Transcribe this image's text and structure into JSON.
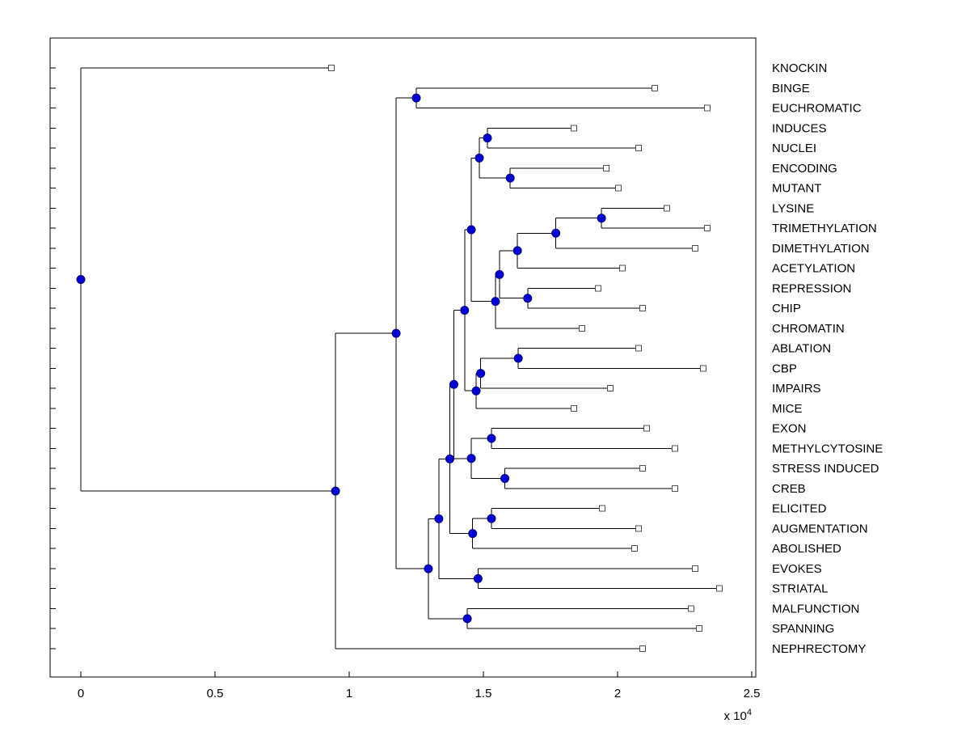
{
  "figure": {
    "background": "#ffffff",
    "axis_color": "#000000",
    "line_color": "#000000",
    "node_color": "#0000d0",
    "node_edge_color": "#000080",
    "leaf_marker_fill": "#ffffff",
    "leaf_marker_edge": "#505050",
    "text_color": "#000000"
  },
  "chart_data": {
    "type": "dendrogram",
    "subtype": "phylogenetic-tree",
    "orientation": "left-to-right",
    "title": "",
    "xlabel": "",
    "ylabel": "",
    "x_multiplier_label": "x 10^4",
    "xlim": [
      0,
      25000
    ],
    "xticks": [
      0,
      5000,
      10000,
      15000,
      20000,
      25000
    ],
    "xtick_labels": [
      "0",
      "0.5",
      "1",
      "1.5",
      "2",
      "2.5"
    ],
    "grid": false,
    "legend": null,
    "leaf_labels": [
      "KNOCKIN",
      "BINGE",
      "EUCHROMATIC",
      "INDUCES",
      "NUCLEI",
      "ENCODING",
      "MUTANT",
      "LYSINE",
      "TRIMETHYLATION",
      "DIMETHYLATION",
      "ACETYLATION",
      "REPRESSION",
      "CHIP",
      "CHROMATIN",
      "ABLATION",
      "CBP",
      "IMPAIRS",
      "MICE",
      "EXON",
      "METHYLCYTOSINE",
      "STRESS INDUCED",
      "CREB",
      "ELICITED",
      "AUGMENTATION",
      "ABOLISHED",
      "EVOKES",
      "STRIATAL",
      "MALFUNCTION",
      "SPANNING",
      "NEPHRECTOMY"
    ],
    "tree": {
      "x": 0,
      "children": [
        {
          "label": "KNOCKIN",
          "x": 9340
        },
        {
          "x": 9490,
          "children": [
            {
              "x": 11750,
              "children": [
                {
                  "x": 12500,
                  "children": [
                    {
                      "label": "BINGE",
                      "x": 21390
                    },
                    {
                      "label": "EUCHROMATIC",
                      "x": 23340
                    }
                  ]
                },
                {
                  "x": 12950,
                  "children": [
                    {
                      "x": 13340,
                      "children": [
                        {
                          "x": 13750,
                          "children": [
                            {
                              "x": 13900,
                              "children": [
                                {
                                  "x": 14300,
                                  "children": [
                                    {
                                      "x": 14550,
                                      "children": [
                                        {
                                          "x": 14850,
                                          "children": [
                                            {
                                              "x": 15150,
                                              "children": [
                                                {
                                                  "label": "INDUCES",
                                                  "x": 18370
                                                },
                                                {
                                                  "label": "NUCLEI",
                                                  "x": 20780
                                                }
                                              ]
                                            },
                                            {
                                              "x": 16000,
                                              "children": [
                                                {
                                                  "label": "ENCODING",
                                                  "x": 19580
                                                },
                                                {
                                                  "label": "MUTANT",
                                                  "x": 20030
                                                }
                                              ]
                                            }
                                          ]
                                        },
                                        {
                                          "x": 15450,
                                          "children": [
                                            {
                                              "x": 15600,
                                              "children": [
                                                {
                                                  "x": 16270,
                                                  "children": [
                                                    {
                                                      "x": 17700,
                                                      "children": [
                                                        {
                                                          "x": 19400,
                                                          "children": [
                                                            {
                                                              "label": "LYSINE",
                                                              "x": 21840
                                                            },
                                                            {
                                                              "label": "TRIMETHYLATION",
                                                              "x": 23340
                                                            }
                                                          ]
                                                        },
                                                        {
                                                          "label": "DIMETHYLATION",
                                                          "x": 22890
                                                        }
                                                      ]
                                                    },
                                                    {
                                                      "label": "ACETYLATION",
                                                      "x": 20180
                                                    }
                                                  ]
                                                },
                                                {
                                                  "x": 16650,
                                                  "children": [
                                                    {
                                                      "label": "REPRESSION",
                                                      "x": 19280
                                                    },
                                                    {
                                                      "label": "CHIP",
                                                      "x": 20930
                                                    }
                                                  ]
                                                }
                                              ]
                                            },
                                            {
                                              "label": "CHROMATIN",
                                              "x": 18670
                                            }
                                          ]
                                        }
                                      ]
                                    },
                                    {
                                      "x": 14730,
                                      "children": [
                                        {
                                          "x": 14900,
                                          "children": [
                                            {
                                              "x": 16300,
                                              "children": [
                                                {
                                                  "label": "ABLATION",
                                                  "x": 20780
                                                },
                                                {
                                                  "label": "CBP",
                                                  "x": 23190
                                                }
                                              ]
                                            },
                                            {
                                              "label": "IMPAIRS",
                                              "x": 19730
                                            }
                                          ]
                                        },
                                        {
                                          "label": "MICE",
                                          "x": 18370
                                        }
                                      ]
                                    }
                                  ]
                                },
                                {
                                  "x": 14550,
                                  "children": [
                                    {
                                      "x": 15300,
                                      "children": [
                                        {
                                          "label": "EXON",
                                          "x": 21080
                                        },
                                        {
                                          "label": "METHYLCYTOSINE",
                                          "x": 22140
                                        }
                                      ]
                                    },
                                    {
                                      "x": 15800,
                                      "children": [
                                        {
                                          "label": "STRESS INDUCED",
                                          "x": 20930
                                        },
                                        {
                                          "label": "CREB",
                                          "x": 22140
                                        }
                                      ]
                                    }
                                  ]
                                }
                              ]
                            },
                            {
                              "x": 14600,
                              "children": [
                                {
                                  "x": 15300,
                                  "children": [
                                    {
                                      "label": "ELICITED",
                                      "x": 19430
                                    },
                                    {
                                      "label": "AUGMENTATION",
                                      "x": 20780
                                    }
                                  ]
                                },
                                {
                                  "label": "ABOLISHED",
                                  "x": 20630
                                }
                              ]
                            }
                          ]
                        },
                        {
                          "x": 14800,
                          "children": [
                            {
                              "label": "EVOKES",
                              "x": 22890
                            },
                            {
                              "label": "STRIATAL",
                              "x": 23800
                            }
                          ]
                        }
                      ]
                    },
                    {
                      "x": 14400,
                      "children": [
                        {
                          "label": "MALFUNCTION",
                          "x": 22740
                        },
                        {
                          "label": "SPANNING",
                          "x": 23040
                        }
                      ]
                    }
                  ]
                }
              ]
            },
            {
              "label": "NEPHRECTOMY",
              "x": 20930
            }
          ]
        }
      ]
    }
  }
}
